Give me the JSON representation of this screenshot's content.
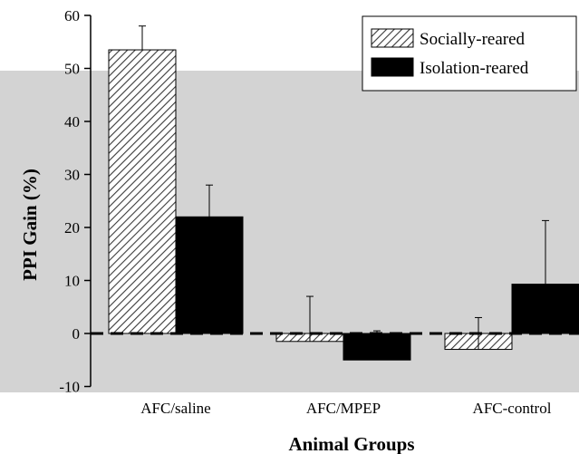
{
  "chart_data": {
    "type": "bar",
    "xlabel": "Animal Groups",
    "ylabel": "PPI Gain (%)",
    "ylim": [
      -10,
      60
    ],
    "yticks": [
      60,
      50,
      40,
      30,
      20,
      10,
      0,
      -10
    ],
    "categories": [
      "AFC/saline",
      "AFC/MPEP",
      "AFC-control"
    ],
    "series": [
      {
        "name": "Socially-reared",
        "values": [
          53.5,
          -1.5,
          -3.0
        ],
        "errors": [
          4.5,
          8.5,
          6.0
        ],
        "pattern": "hatched"
      },
      {
        "name": "Isolation-reared",
        "values": [
          22.0,
          -5.0,
          9.3
        ],
        "errors": [
          6.0,
          5.5,
          12.0
        ],
        "pattern": "solid"
      }
    ],
    "reference_line": {
      "y": 0,
      "style": "dashed"
    },
    "legend_placement": "top-right",
    "colors": {
      "panel": "#d3d3d3",
      "solid_bar": "#000000",
      "hatch": "#3a3a3a"
    }
  }
}
